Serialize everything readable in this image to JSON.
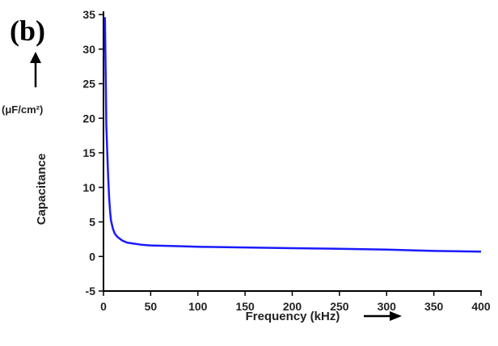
{
  "panel_label": "(b)",
  "chart_data": {
    "type": "line",
    "xlabel": "Frequency (kHz)",
    "ylabel": "Capacitance",
    "yunit": "(μF/cm²)",
    "xlim": [
      0,
      400
    ],
    "ylim": [
      -5,
      35
    ],
    "xticks": [
      0,
      50,
      100,
      150,
      200,
      250,
      300,
      350,
      400
    ],
    "yticks": [
      -5,
      0,
      5,
      10,
      15,
      20,
      25,
      30,
      35
    ],
    "xtick_labels": [
      "0",
      "50",
      "100",
      "150",
      "200",
      "250",
      "300",
      "350",
      "400"
    ],
    "ytick_labels": [
      "-5",
      "0",
      "5",
      "10",
      "15",
      "20",
      "25",
      "30",
      "35"
    ],
    "grid": false,
    "series": [
      {
        "color": "#1a1aff",
        "x": [
          1,
          1.5,
          2,
          2.5,
          3,
          4,
          5,
          6,
          7,
          8,
          10,
          12,
          15,
          20,
          25,
          30,
          40,
          50,
          75,
          100,
          150,
          200,
          250,
          300,
          350,
          400
        ],
        "y": [
          34.5,
          34.5,
          30,
          25,
          19,
          15,
          11.5,
          8.5,
          6.5,
          5.2,
          4.0,
          3.3,
          2.8,
          2.3,
          2.0,
          1.9,
          1.7,
          1.6,
          1.5,
          1.4,
          1.3,
          1.2,
          1.1,
          1.0,
          0.8,
          0.7
        ]
      }
    ]
  }
}
